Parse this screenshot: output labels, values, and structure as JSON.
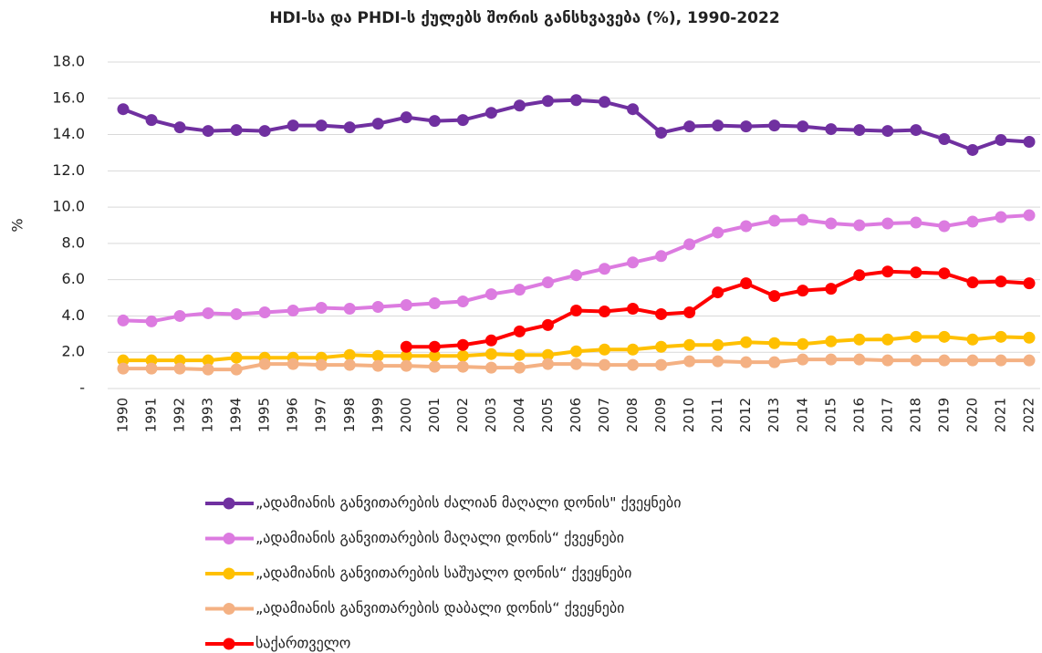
{
  "chart_data": {
    "type": "line",
    "title": "HDI-სა და PHDI-ს ქულებს შორის განსხვავება (%), 1990-2022",
    "y_label": "%",
    "categories": [
      "1990",
      "1991",
      "1992",
      "1993",
      "1994",
      "1995",
      "1996",
      "1997",
      "1998",
      "1999",
      "2000",
      "2001",
      "2002",
      "2003",
      "2004",
      "2005",
      "2006",
      "2007",
      "2008",
      "2009",
      "2010",
      "2011",
      "2012",
      "2013",
      "2014",
      "2015",
      "2016",
      "2017",
      "2018",
      "2019",
      "2020",
      "2021",
      "2022"
    ],
    "ylim": [
      0,
      18
    ],
    "yticks": [
      {
        "value": 0,
        "label": "-"
      },
      {
        "value": 2,
        "label": "2.0"
      },
      {
        "value": 4,
        "label": "4.0"
      },
      {
        "value": 6,
        "label": "6.0"
      },
      {
        "value": 8,
        "label": "8.0"
      },
      {
        "value": 10,
        "label": "10.0"
      },
      {
        "value": 12,
        "label": "12.0"
      },
      {
        "value": 14,
        "label": "14.0"
      },
      {
        "value": 16,
        "label": "16.0"
      },
      {
        "value": 18,
        "label": "18.0"
      }
    ],
    "grid": true,
    "legend": "bottom",
    "series": [
      {
        "name": "„ადამიანის განვითარების ძალიან მაღალი დონის\" ქვეყნები",
        "color": "#7030a0",
        "values": [
          15.4,
          14.8,
          14.4,
          14.2,
          14.25,
          14.2,
          14.5,
          14.5,
          14.4,
          14.6,
          14.95,
          14.75,
          14.8,
          15.2,
          15.6,
          15.85,
          15.9,
          15.8,
          15.4,
          14.1,
          14.45,
          14.5,
          14.45,
          14.5,
          14.45,
          14.3,
          14.25,
          14.2,
          14.25,
          13.75,
          13.15,
          13.7,
          13.6
        ]
      },
      {
        "name": "„ადამიანის განვითარების მაღალი დონის“ ქვეყნები",
        "color": "#dc7be0",
        "values": [
          3.75,
          3.7,
          4.0,
          4.15,
          4.1,
          4.2,
          4.3,
          4.45,
          4.4,
          4.5,
          4.6,
          4.7,
          4.8,
          5.2,
          5.45,
          5.85,
          6.25,
          6.6,
          6.95,
          7.3,
          7.95,
          8.6,
          8.95,
          9.25,
          9.3,
          9.1,
          9.0,
          9.1,
          9.15,
          8.95,
          9.2,
          9.45,
          9.55
        ]
      },
      {
        "name": "„ადამიანის განვითარების საშუალო დონის“ ქვეყნები",
        "color": "#ffc000",
        "values": [
          1.55,
          1.55,
          1.55,
          1.55,
          1.7,
          1.7,
          1.7,
          1.7,
          1.85,
          1.8,
          1.8,
          1.8,
          1.8,
          1.9,
          1.85,
          1.85,
          2.05,
          2.15,
          2.15,
          2.3,
          2.4,
          2.4,
          2.55,
          2.5,
          2.45,
          2.6,
          2.7,
          2.7,
          2.85,
          2.85,
          2.7,
          2.85,
          2.8
        ]
      },
      {
        "name": "„ადამიანის განვითარების დაბალი დონის“ ქვეყნები",
        "color": "#f4b183",
        "values": [
          1.1,
          1.1,
          1.1,
          1.05,
          1.05,
          1.35,
          1.35,
          1.3,
          1.3,
          1.25,
          1.25,
          1.2,
          1.2,
          1.15,
          1.15,
          1.35,
          1.35,
          1.3,
          1.3,
          1.3,
          1.5,
          1.5,
          1.45,
          1.45,
          1.6,
          1.6,
          1.6,
          1.55,
          1.55,
          1.55,
          1.55,
          1.55,
          1.55
        ]
      },
      {
        "name": "საქართველო",
        "color": "#ff0000",
        "values": [
          null,
          null,
          null,
          null,
          null,
          null,
          null,
          null,
          null,
          null,
          2.3,
          2.3,
          2.4,
          2.65,
          3.15,
          3.5,
          4.3,
          4.25,
          4.4,
          4.1,
          4.2,
          5.3,
          5.8,
          5.1,
          5.4,
          5.5,
          6.25,
          6.45,
          6.4,
          6.35,
          5.85,
          5.9,
          5.8
        ]
      }
    ]
  }
}
